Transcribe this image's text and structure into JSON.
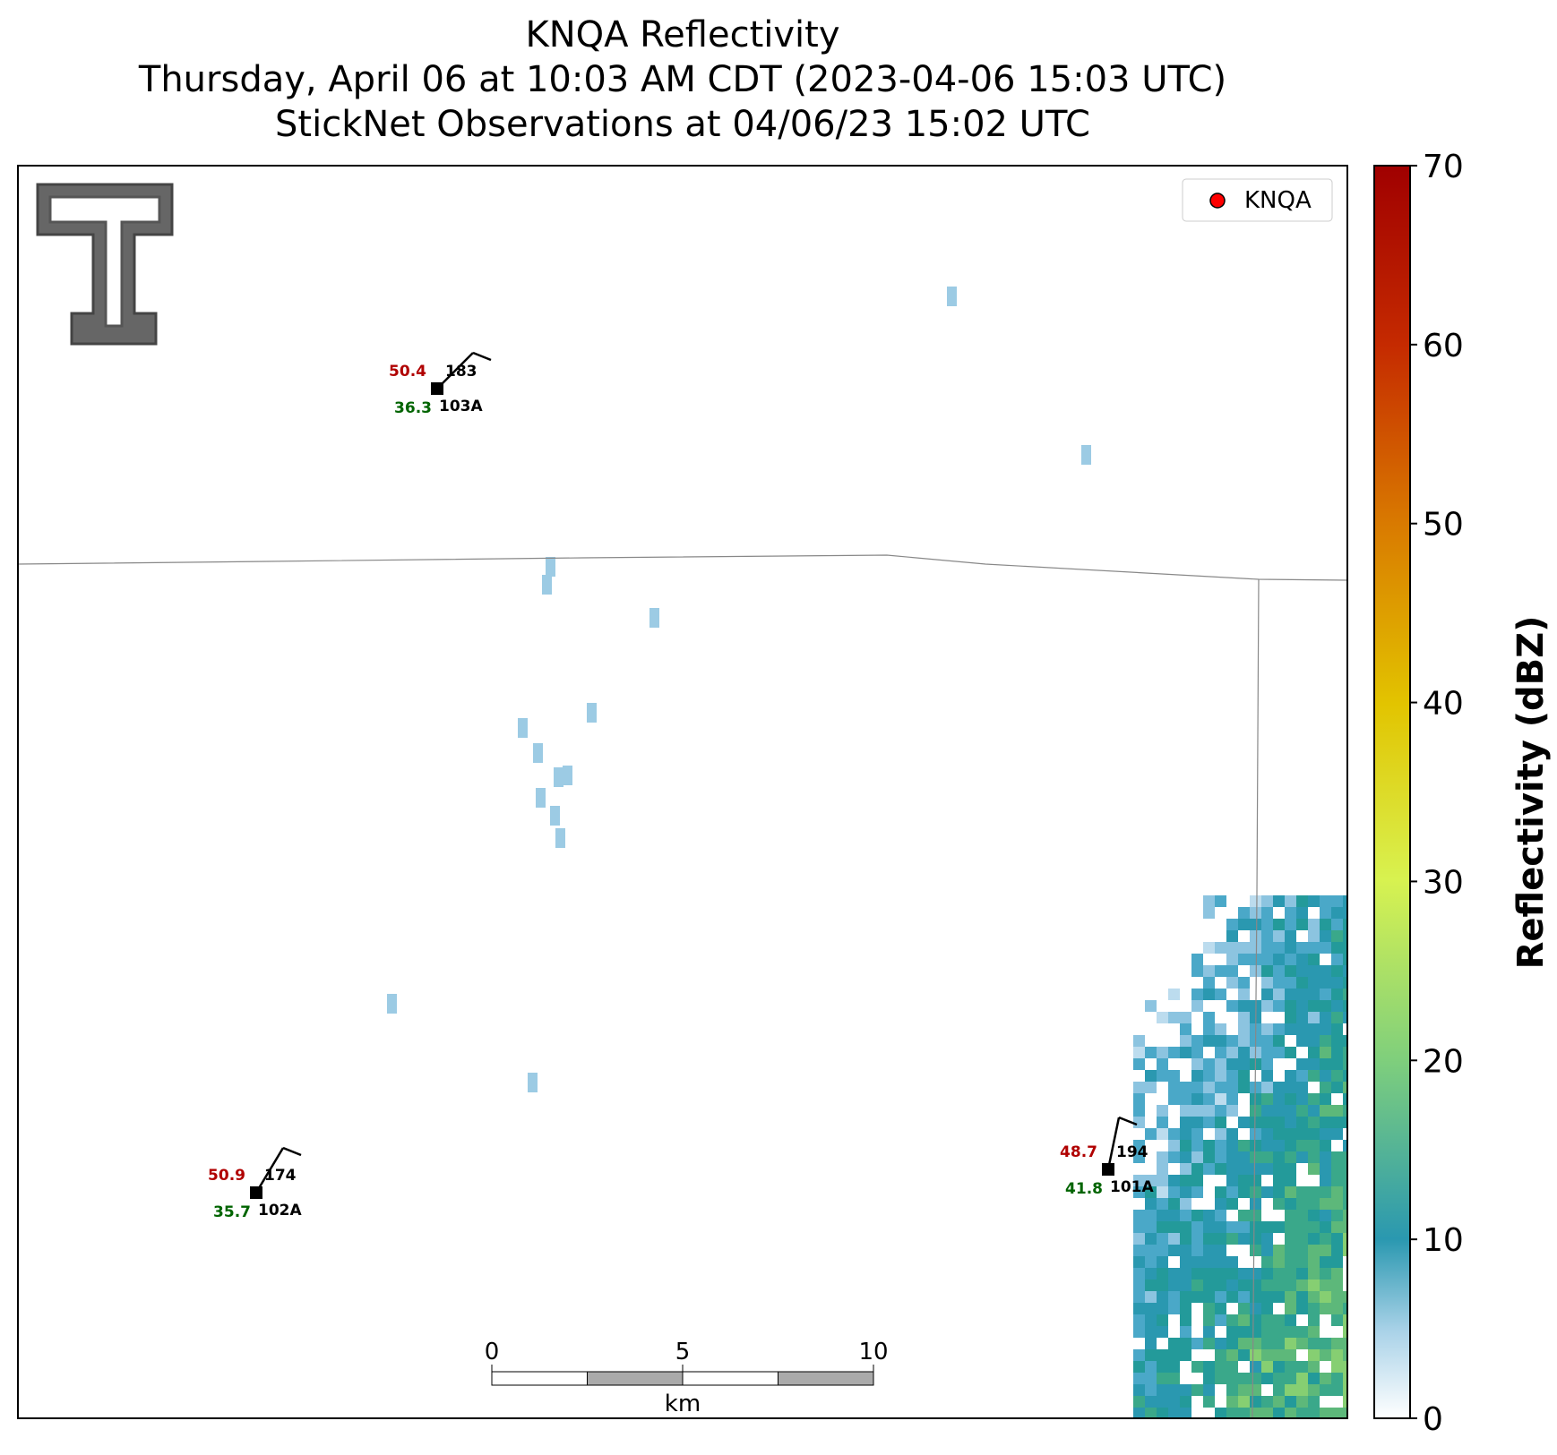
{
  "chart_data": {
    "type": "map",
    "title": [
      "KNQA Reflectivity",
      "Thursday, April 06 at 10:03 AM CDT (2023-04-06 15:03 UTC)",
      "StickNet Observations at 04/06/23 15:02 UTC"
    ],
    "legend": "KNQA",
    "colorbar": {
      "label": "Reflectivity (dBZ)",
      "lim": [
        0,
        70
      ],
      "ticks": [
        0,
        10,
        20,
        30,
        40,
        50,
        60,
        70
      ]
    },
    "stations": [
      {
        "id": "103A",
        "temperature": 50.4,
        "dewpoint": 36.3,
        "value": 183
      },
      {
        "id": "102A",
        "temperature": 50.9,
        "dewpoint": 35.7,
        "value": 174
      },
      {
        "id": "101A",
        "temperature": 48.7,
        "dewpoint": 41.8,
        "value": 194
      }
    ],
    "scale_bar": {
      "ticks": [
        0,
        5,
        10
      ],
      "unit": "km"
    }
  }
}
